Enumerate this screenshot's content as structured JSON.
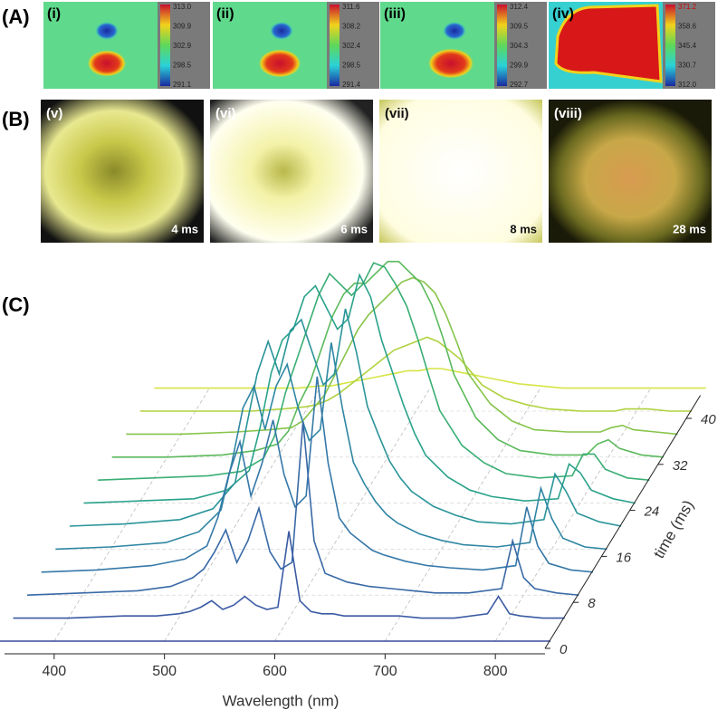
{
  "panel_a": {
    "label": "(A)",
    "images": [
      {
        "label": "(i)",
        "scale": [
          "313.0",
          "309.9",
          "302.9",
          "298.5",
          "291.1"
        ]
      },
      {
        "label": "(ii)",
        "scale": [
          "311.6",
          "308.2",
          "302.4",
          "298.5",
          "291.4"
        ]
      },
      {
        "label": "(iii)",
        "scale": [
          "312.4",
          "309.5",
          "304.3",
          "299.9",
          "292.7"
        ]
      },
      {
        "label": "(iv)",
        "scale": [
          "371.2",
          "358.6",
          "345.4",
          "330.7",
          "312.0"
        ]
      }
    ]
  },
  "panel_b": {
    "label": "(B)",
    "images": [
      {
        "label": "(v)",
        "time": "4 ms"
      },
      {
        "label": "(vi)",
        "time": "6 ms"
      },
      {
        "label": "(vii)",
        "time": "8 ms"
      },
      {
        "label": "(viii)",
        "time": "28 ms"
      }
    ]
  },
  "chart_data": {
    "type": "waterfall",
    "label": "(C)",
    "x_label": "Wavelength (nm)",
    "z_label": "time (ms)",
    "x": [
      350,
      400,
      450,
      480,
      500,
      510,
      520,
      530,
      540,
      550,
      560,
      570,
      580,
      590,
      600,
      610,
      620,
      630,
      640,
      650,
      660,
      680,
      700,
      720,
      750,
      780,
      790,
      800,
      810,
      830,
      850
    ],
    "xlim": [
      355,
      845
    ],
    "xticks": [
      400,
      500,
      600,
      700,
      800
    ],
    "zlim": [
      0,
      44
    ],
    "zticks": [
      0,
      8,
      16,
      24,
      32,
      40
    ],
    "grid": true,
    "series": [
      {
        "time": 0,
        "color": "#3b4a9c",
        "values": [
          0,
          0,
          0,
          0,
          0,
          0,
          0,
          0,
          0,
          0,
          0,
          0,
          0,
          0,
          0,
          0,
          0,
          0,
          0,
          0,
          0,
          0,
          0,
          0,
          0,
          0,
          0,
          0,
          0,
          0,
          0
        ]
      },
      {
        "time": 4,
        "color": "#3a5aa3",
        "values": [
          0,
          0,
          1,
          1,
          2,
          3,
          5,
          8,
          4,
          6,
          10,
          6,
          4,
          5,
          40,
          8,
          3,
          2,
          2,
          1,
          1,
          1,
          1,
          0,
          0,
          2,
          10,
          2,
          1,
          0,
          0
        ]
      },
      {
        "time": 8,
        "color": "#3869a6",
        "values": [
          0,
          1,
          2,
          4,
          8,
          12,
          20,
          30,
          15,
          25,
          40,
          20,
          12,
          15,
          80,
          25,
          10,
          8,
          6,
          5,
          4,
          3,
          2,
          1,
          1,
          3,
          25,
          8,
          3,
          1,
          0
        ]
      },
      {
        "time": 12,
        "color": "#3578a8",
        "values": [
          0,
          1,
          3,
          6,
          12,
          25,
          45,
          60,
          35,
          50,
          70,
          45,
          30,
          35,
          90,
          50,
          25,
          18,
          14,
          10,
          8,
          5,
          3,
          2,
          1,
          3,
          30,
          12,
          4,
          1,
          0
        ]
      },
      {
        "time": 16,
        "color": "#2f86a3",
        "values": [
          0,
          1,
          3,
          8,
          18,
          40,
          65,
          75,
          55,
          75,
          85,
          65,
          50,
          55,
          95,
          65,
          40,
          30,
          22,
          16,
          12,
          7,
          4,
          2,
          1,
          3,
          28,
          14,
          5,
          1,
          0
        ]
      },
      {
        "time": 20,
        "color": "#2a9499",
        "values": [
          0,
          1,
          3,
          8,
          20,
          45,
          70,
          85,
          70,
          90,
          95,
          80,
          65,
          70,
          100,
          80,
          55,
          42,
          30,
          22,
          16,
          9,
          5,
          2,
          1,
          3,
          24,
          16,
          6,
          2,
          0
        ]
      },
      {
        "time": 24,
        "color": "#2aa28a",
        "values": [
          0,
          1,
          2,
          6,
          15,
          35,
          60,
          75,
          80,
          95,
          100,
          90,
          80,
          85,
          105,
          95,
          75,
          60,
          45,
          32,
          22,
          12,
          6,
          3,
          1,
          2,
          18,
          14,
          6,
          2,
          0
        ]
      },
      {
        "time": 28,
        "color": "#3aae74",
        "values": [
          0,
          1,
          2,
          4,
          10,
          20,
          40,
          55,
          70,
          85,
          95,
          90,
          85,
          90,
          100,
          98,
          90,
          80,
          65,
          48,
          32,
          16,
          8,
          3,
          1,
          2,
          12,
          12,
          5,
          1,
          0
        ]
      },
      {
        "time": 32,
        "color": "#5bb95c",
        "values": [
          0,
          0,
          1,
          3,
          6,
          12,
          25,
          35,
          50,
          65,
          75,
          80,
          80,
          85,
          90,
          90,
          85,
          80,
          70,
          55,
          38,
          18,
          8,
          3,
          1,
          1,
          6,
          8,
          4,
          1,
          0
        ]
      },
      {
        "time": 36,
        "color": "#86c44a",
        "values": [
          0,
          0,
          1,
          2,
          3,
          6,
          12,
          18,
          28,
          38,
          48,
          55,
          60,
          65,
          70,
          72,
          70,
          65,
          55,
          42,
          28,
          14,
          6,
          2,
          1,
          1,
          3,
          4,
          2,
          1,
          0
        ]
      },
      {
        "time": 40,
        "color": "#b0d23f",
        "values": [
          0,
          0,
          0,
          1,
          2,
          3,
          5,
          8,
          12,
          16,
          20,
          24,
          28,
          30,
          32,
          34,
          32,
          28,
          24,
          18,
          12,
          6,
          3,
          1,
          0,
          0,
          1,
          1,
          1,
          0,
          0
        ]
      },
      {
        "time": 44,
        "color": "#d6e445",
        "values": [
          0,
          0,
          0,
          0,
          1,
          1,
          2,
          3,
          4,
          5,
          6,
          7,
          8,
          8,
          9,
          9,
          8,
          7,
          6,
          5,
          4,
          2,
          1,
          0,
          0,
          0,
          0,
          0,
          0,
          0,
          0
        ]
      }
    ]
  }
}
